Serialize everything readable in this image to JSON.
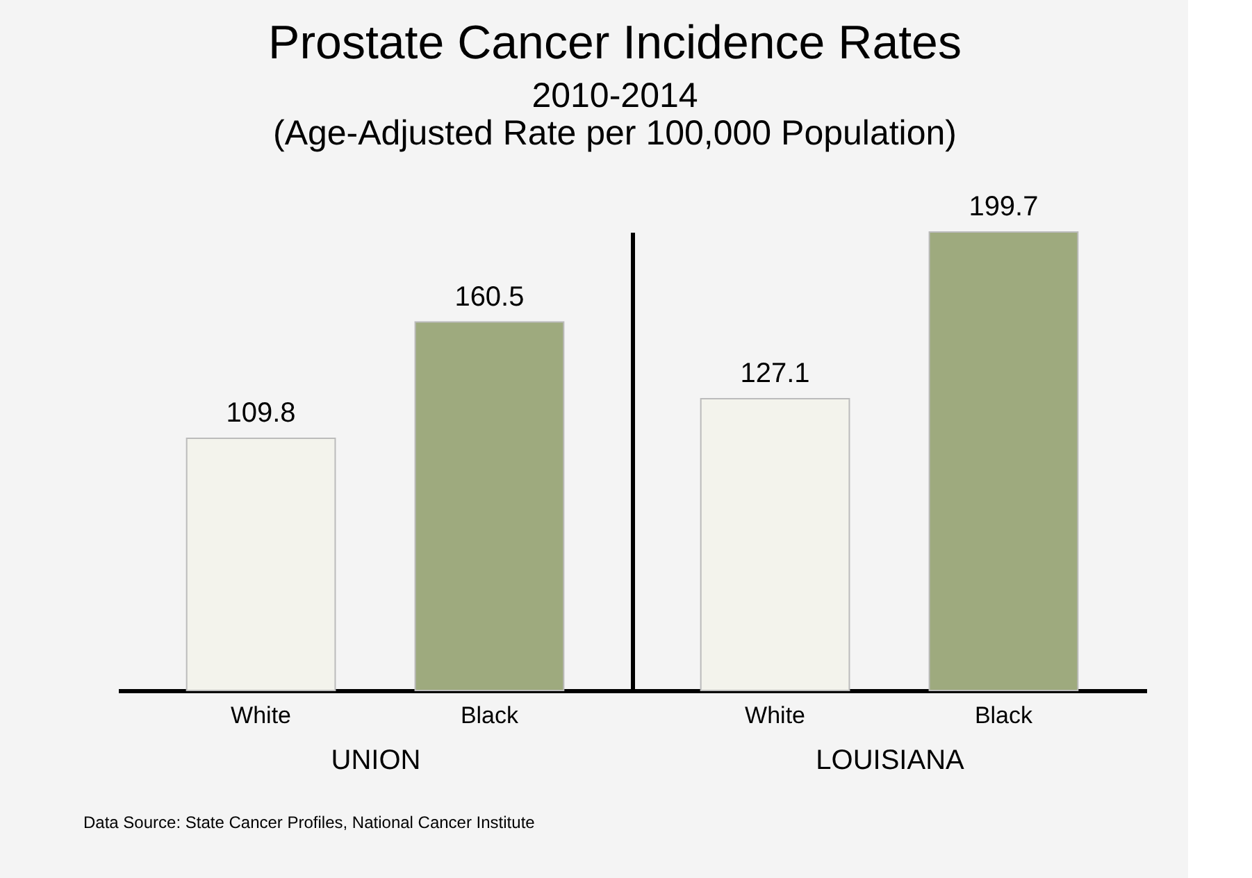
{
  "chart_data": [
    {
      "type": "bar",
      "title": "Prostate Cancer Incidence Rates",
      "subtitle": "2010-2014\n(Age-Adjusted Rate per 100,000 Population)",
      "categories": [
        "White",
        "Black"
      ],
      "values": [
        109.8,
        160.5
      ],
      "colors": [
        "#f3f3ec",
        "#9eaa7e"
      ],
      "xlabel": "UNION",
      "data_labels": true,
      "annotations": [
        "Data Source:  State Cancer Profiles, National Cancer Institute"
      ]
    },
    {
      "type": "bar",
      "categories": [
        "White",
        "Black"
      ],
      "values": [
        127.1,
        199.7
      ],
      "colors": [
        "#f3f3ec",
        "#9eaa7e"
      ],
      "xlabel": "LOUISIANA",
      "data_labels": true
    }
  ]
}
